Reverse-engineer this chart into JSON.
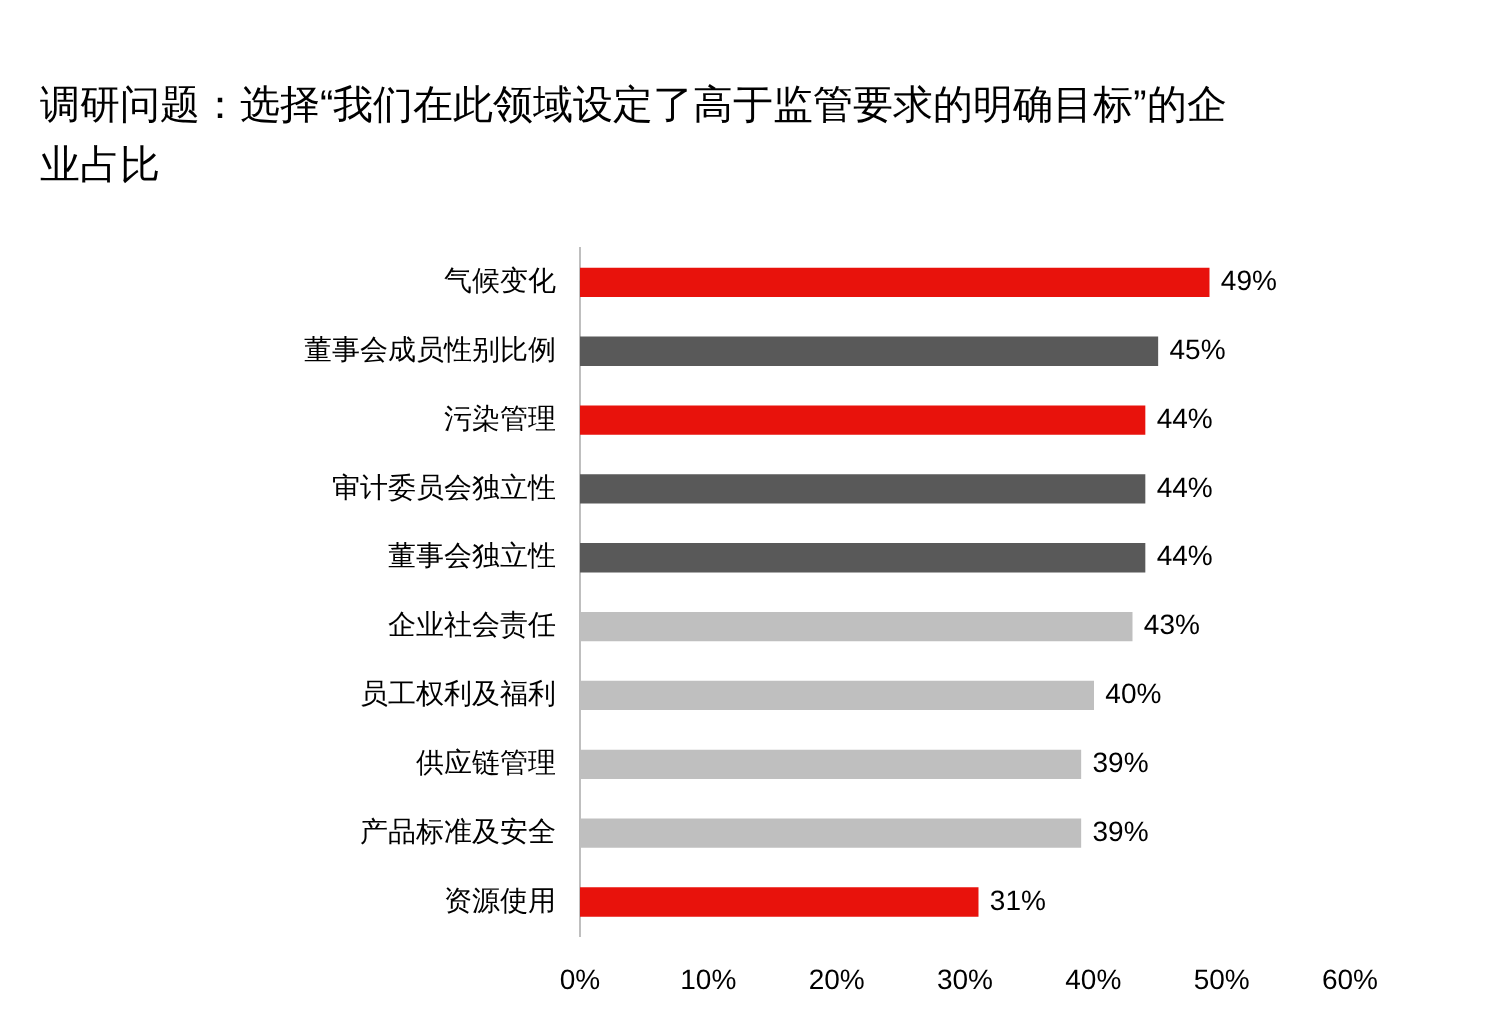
{
  "chart_data": {
    "type": "bar",
    "orientation": "horizontal",
    "title": "调研问题：选择“我们在此领域设定了高于监管要求的明确目标”的企业占比",
    "categories": [
      "气候变化",
      "董事会成员性别比例",
      "污染管理",
      "审计委员会独立性",
      "董事会独立性",
      "企业社会责任",
      "员工权利及福利",
      "供应链管理",
      "产品标准及安全",
      "资源使用"
    ],
    "values": [
      49,
      45,
      44,
      44,
      44,
      43,
      40,
      39,
      39,
      31
    ],
    "value_labels": [
      "49%",
      "45%",
      "44%",
      "44%",
      "44%",
      "43%",
      "40%",
      "39%",
      "39%",
      "31%"
    ],
    "colors": [
      "#e8120c",
      "#595959",
      "#e8120c",
      "#595959",
      "#595959",
      "#bfbfbf",
      "#bfbfbf",
      "#bfbfbf",
      "#bfbfbf",
      "#e8120c"
    ],
    "xlim": [
      0,
      60
    ],
    "xticks": [
      {
        "value": 0,
        "label": "0%"
      },
      {
        "value": 10,
        "label": "10%"
      },
      {
        "value": 20,
        "label": "20%"
      },
      {
        "value": 30,
        "label": "30%"
      },
      {
        "value": 40,
        "label": "40%"
      },
      {
        "value": 50,
        "label": "50%"
      },
      {
        "value": 60,
        "label": "60%"
      }
    ],
    "grid": false,
    "legend": false
  }
}
